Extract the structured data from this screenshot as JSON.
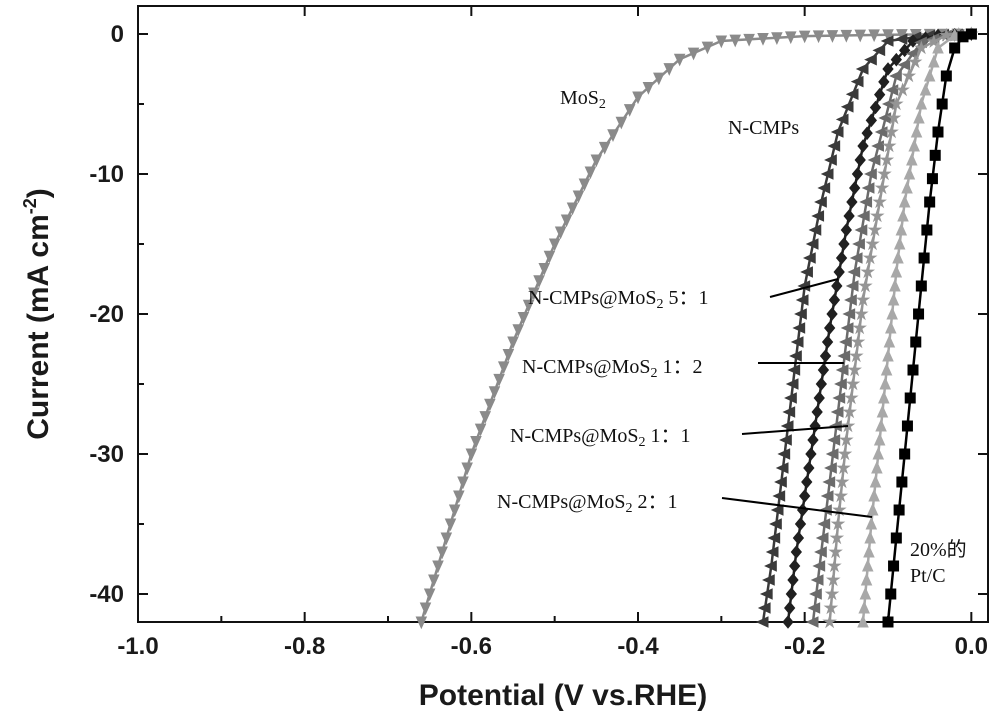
{
  "chart_data": {
    "type": "line",
    "title": "",
    "xlabel": "Potential (V vs.RHE)",
    "ylabel": "Current (mA cm-2)",
    "ylabel_parts": {
      "main": "Current (mA cm",
      "sup": "-2",
      "end": ")"
    },
    "xlim": [
      -1.0,
      0.02
    ],
    "ylim": [
      -42,
      2
    ],
    "x_ticks": [
      -1.0,
      -0.8,
      -0.6,
      -0.4,
      -0.2,
      0.0
    ],
    "x_tick_labels": [
      "-1.0",
      "-0.8",
      "-0.6",
      "-0.4",
      "-0.2",
      "0.0"
    ],
    "y_ticks": [
      0,
      -10,
      -20,
      -30,
      -40
    ],
    "y_tick_labels": [
      "0",
      "-10",
      "-20",
      "-30",
      "-40"
    ],
    "grid": false,
    "legend": "inline labels",
    "series": [
      {
        "name": "MoS2",
        "label_parts": {
          "main": "MoS",
          "sub": "2"
        },
        "color": "#8a8a8a",
        "marker": "triangle-down",
        "x": [
          0.0,
          -0.1,
          -0.2,
          -0.3,
          -0.35,
          -0.4,
          -0.45,
          -0.5,
          -0.55,
          -0.6,
          -0.63,
          -0.66
        ],
        "y": [
          0,
          -0.05,
          -0.15,
          -0.5,
          -1.8,
          -4.5,
          -9,
          -15,
          -22,
          -30,
          -36,
          -42
        ]
      },
      {
        "name": "N-CMPs",
        "color": "#3a3a3a",
        "marker": "triangle-left",
        "x": [
          0.0,
          -0.05,
          -0.1,
          -0.13,
          -0.16,
          -0.18,
          -0.2,
          -0.21,
          -0.22,
          -0.23,
          -0.24,
          -0.25
        ],
        "y": [
          0,
          -0.1,
          -0.5,
          -2.5,
          -7,
          -12,
          -18,
          -23,
          -28,
          -33,
          -38,
          -42
        ]
      },
      {
        "name": "N-CMPs@MoS2 5:1",
        "label_parts": {
          "main": "N-CMPs@MoS",
          "sub": "2",
          "end": " 5：1"
        },
        "color": "#202020",
        "marker": "diamond",
        "x": [
          0.0,
          -0.04,
          -0.07,
          -0.1,
          -0.13,
          -0.15,
          -0.17,
          -0.18,
          -0.19,
          -0.2,
          -0.21,
          -0.22
        ],
        "y": [
          0,
          -0.1,
          -0.5,
          -2.5,
          -8,
          -14,
          -21,
          -25,
          -29,
          -33,
          -37,
          -42
        ]
      },
      {
        "name": "N-CMPs@MoS2 1:2",
        "label_parts": {
          "main": "N-CMPs@MoS",
          "sub": "2",
          "end": " 1：2"
        },
        "color": "#6b6b6b",
        "marker": "triangle-left",
        "x": [
          0.0,
          -0.03,
          -0.06,
          -0.09,
          -0.12,
          -0.14,
          -0.15,
          -0.16,
          -0.17,
          -0.18,
          -0.19
        ],
        "y": [
          0,
          -0.1,
          -0.6,
          -3,
          -10,
          -17,
          -22,
          -27,
          -32,
          -37,
          -42
        ]
      },
      {
        "name": "N-CMPs@MoS2 1:1",
        "label_parts": {
          "main": "N-CMPs@MoS",
          "sub": "2",
          "end": " 1：1"
        },
        "color": "#959595",
        "marker": "star",
        "x": [
          0.0,
          -0.03,
          -0.06,
          -0.09,
          -0.11,
          -0.13,
          -0.14,
          -0.15,
          -0.16,
          -0.17
        ],
        "y": [
          0,
          -0.1,
          -1,
          -5,
          -12,
          -19,
          -24,
          -29,
          -35,
          -42
        ]
      },
      {
        "name": "N-CMPs@MoS2 2:1",
        "label_parts": {
          "main": "N-CMPs@MoS",
          "sub": "2",
          "end": " 2：1"
        },
        "color": "#a8a8a8",
        "marker": "triangle-up",
        "x": [
          0.0,
          -0.02,
          -0.04,
          -0.06,
          -0.08,
          -0.09,
          -0.1,
          -0.11,
          -0.12,
          -0.13
        ],
        "y": [
          0,
          -0.1,
          -1,
          -5,
          -12,
          -17,
          -23,
          -29,
          -35,
          -42
        ]
      },
      {
        "name": "20%的 Pt/C",
        "label_lines": [
          "20%的",
          "Pt/C"
        ],
        "color": "#000000",
        "marker": "square",
        "x": [
          0.0,
          -0.01,
          -0.02,
          -0.03,
          -0.04,
          -0.05,
          -0.06,
          -0.07,
          -0.08,
          -0.09,
          -0.1
        ],
        "y": [
          0,
          -0.2,
          -1,
          -3,
          -7,
          -12,
          -18,
          -24,
          -30,
          -36,
          -42
        ]
      }
    ]
  }
}
